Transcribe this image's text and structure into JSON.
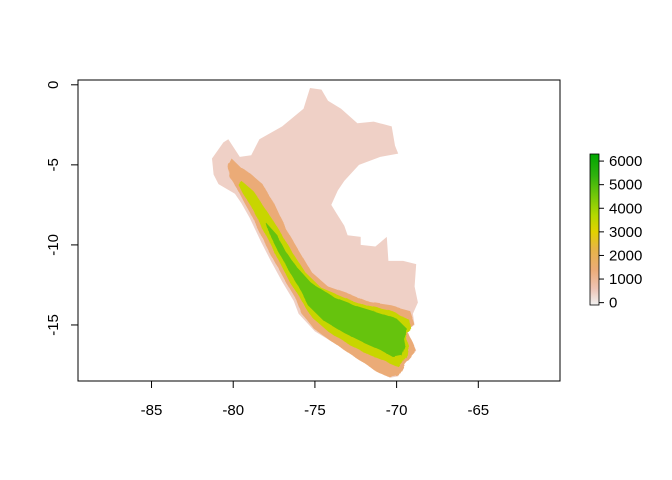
{
  "chart_data": {
    "type": "heatmap",
    "title": "",
    "xlabel": "",
    "ylabel": "",
    "xlim": [
      -89.5,
      -60
    ],
    "ylim": [
      -18.5,
      0.3
    ],
    "x_ticks": [
      -85,
      -80,
      -75,
      -70,
      -65
    ],
    "y_ticks": [
      0,
      -5,
      -10,
      -15
    ],
    "x_tick_labels": [
      "-85",
      "-80",
      "-75",
      "-70",
      "-65"
    ],
    "y_tick_labels": [
      "0",
      "-5",
      "-10",
      "-15"
    ],
    "legend": {
      "placement": "right",
      "range": [
        -100,
        6300
      ],
      "ticks": [
        0,
        1000,
        2000,
        3000,
        4000,
        5000,
        6000
      ],
      "tick_labels": [
        "0",
        "1000",
        "2000",
        "3000",
        "4000",
        "5000",
        "6000"
      ],
      "palette": [
        {
          "value": -100,
          "color": "#f2f2f2"
        },
        {
          "value": 600,
          "color": "#eec3b4"
        },
        {
          "value": 1400,
          "color": "#ebab77"
        },
        {
          "value": 2300,
          "color": "#e6b545"
        },
        {
          "value": 3000,
          "color": "#e2d100"
        },
        {
          "value": 3700,
          "color": "#b4d800"
        },
        {
          "value": 4600,
          "color": "#6ec60a"
        },
        {
          "value": 5400,
          "color": "#2fb10e"
        },
        {
          "value": 6300,
          "color": "#00a600"
        }
      ]
    },
    "regions": {
      "country_outline": [
        [
          -81.2,
          -5.6
        ],
        [
          -81.3,
          -4.6
        ],
        [
          -80.6,
          -3.6
        ],
        [
          -80.3,
          -3.4
        ],
        [
          -79.6,
          -4.5
        ],
        [
          -78.9,
          -4.4
        ],
        [
          -78.4,
          -3.4
        ],
        [
          -77.0,
          -2.6
        ],
        [
          -75.7,
          -1.5
        ],
        [
          -75.3,
          -0.2
        ],
        [
          -74.6,
          -0.3
        ],
        [
          -74.2,
          -1.0
        ],
        [
          -73.4,
          -1.5
        ],
        [
          -72.4,
          -2.4
        ],
        [
          -71.4,
          -2.3
        ],
        [
          -70.3,
          -2.6
        ],
        [
          -70.1,
          -3.8
        ],
        [
          -69.9,
          -4.3
        ],
        [
          -71.0,
          -4.5
        ],
        [
          -72.3,
          -5.0
        ],
        [
          -73.2,
          -6.0
        ],
        [
          -73.6,
          -6.6
        ],
        [
          -74.0,
          -7.5
        ],
        [
          -73.7,
          -8.0
        ],
        [
          -73.2,
          -8.8
        ],
        [
          -73.0,
          -9.4
        ],
        [
          -72.2,
          -9.5
        ],
        [
          -72.2,
          -10.0
        ],
        [
          -71.3,
          -10.1
        ],
        [
          -70.6,
          -9.5
        ],
        [
          -70.5,
          -11.0
        ],
        [
          -69.6,
          -11.0
        ],
        [
          -68.8,
          -11.2
        ],
        [
          -68.9,
          -12.6
        ],
        [
          -68.7,
          -13.6
        ],
        [
          -69.0,
          -14.3
        ],
        [
          -68.9,
          -15.0
        ],
        [
          -69.4,
          -15.3
        ],
        [
          -69.0,
          -16.1
        ],
        [
          -68.8,
          -16.6
        ],
        [
          -69.5,
          -17.4
        ],
        [
          -69.9,
          -18.2
        ],
        [
          -70.4,
          -18.3
        ],
        [
          -71.4,
          -17.8
        ],
        [
          -72.4,
          -17.0
        ],
        [
          -73.4,
          -16.4
        ],
        [
          -75.0,
          -15.4
        ],
        [
          -76.0,
          -14.3
        ],
        [
          -76.3,
          -13.5
        ],
        [
          -77.0,
          -12.3
        ],
        [
          -77.7,
          -11.0
        ],
        [
          -78.3,
          -9.8
        ],
        [
          -79.0,
          -8.3
        ],
        [
          -79.5,
          -7.4
        ],
        [
          -79.9,
          -6.8
        ],
        [
          -80.9,
          -6.2
        ],
        [
          -81.2,
          -5.6
        ]
      ],
      "andes_mid": [
        [
          -80.1,
          -4.6
        ],
        [
          -79.5,
          -5.2
        ],
        [
          -79.0,
          -5.5
        ],
        [
          -78.2,
          -6.2
        ],
        [
          -77.6,
          -7.2
        ],
        [
          -77.1,
          -8.3
        ],
        [
          -76.6,
          -9.3
        ],
        [
          -75.9,
          -10.5
        ],
        [
          -75.2,
          -11.7
        ],
        [
          -74.2,
          -12.6
        ],
        [
          -72.8,
          -13.1
        ],
        [
          -71.6,
          -13.6
        ],
        [
          -70.3,
          -13.8
        ],
        [
          -69.2,
          -14.1
        ],
        [
          -68.9,
          -15.0
        ],
        [
          -69.4,
          -15.3
        ],
        [
          -69.0,
          -16.1
        ],
        [
          -68.8,
          -16.6
        ],
        [
          -69.5,
          -17.4
        ],
        [
          -69.9,
          -18.2
        ],
        [
          -70.4,
          -18.3
        ],
        [
          -71.4,
          -17.8
        ],
        [
          -72.4,
          -17.1
        ],
        [
          -73.6,
          -16.3
        ],
        [
          -75.0,
          -15.3
        ],
        [
          -75.8,
          -14.3
        ],
        [
          -76.1,
          -13.5
        ],
        [
          -76.8,
          -12.3
        ],
        [
          -77.5,
          -11.0
        ],
        [
          -78.1,
          -9.8
        ],
        [
          -78.8,
          -8.3
        ],
        [
          -79.3,
          -7.4
        ],
        [
          -79.7,
          -6.6
        ],
        [
          -80.2,
          -5.8
        ],
        [
          -80.3,
          -5.0
        ],
        [
          -80.1,
          -4.6
        ]
      ],
      "andes_high": [
        [
          -79.5,
          -6.0
        ],
        [
          -78.8,
          -6.6
        ],
        [
          -78.2,
          -7.5
        ],
        [
          -77.6,
          -8.4
        ],
        [
          -77.0,
          -9.4
        ],
        [
          -76.3,
          -10.6
        ],
        [
          -75.6,
          -11.7
        ],
        [
          -74.6,
          -12.7
        ],
        [
          -73.2,
          -13.3
        ],
        [
          -71.8,
          -13.8
        ],
        [
          -70.4,
          -14.1
        ],
        [
          -69.3,
          -14.6
        ],
        [
          -69.1,
          -15.2
        ],
        [
          -69.4,
          -15.5
        ],
        [
          -69.3,
          -16.3
        ],
        [
          -69.4,
          -17.0
        ],
        [
          -69.9,
          -17.6
        ],
        [
          -70.6,
          -17.3
        ],
        [
          -71.6,
          -16.9
        ],
        [
          -72.8,
          -16.3
        ],
        [
          -74.2,
          -15.4
        ],
        [
          -75.2,
          -14.5
        ],
        [
          -75.8,
          -13.5
        ],
        [
          -76.5,
          -12.4
        ],
        [
          -77.1,
          -11.2
        ],
        [
          -77.7,
          -10.0
        ],
        [
          -78.3,
          -8.8
        ],
        [
          -78.9,
          -7.6
        ],
        [
          -79.4,
          -6.8
        ],
        [
          -79.7,
          -6.2
        ],
        [
          -79.5,
          -6.0
        ]
      ],
      "andes_peak": [
        [
          -78.0,
          -8.6
        ],
        [
          -77.3,
          -9.4
        ],
        [
          -76.8,
          -10.4
        ],
        [
          -76.1,
          -11.4
        ],
        [
          -75.2,
          -12.4
        ],
        [
          -73.8,
          -13.3
        ],
        [
          -72.5,
          -13.8
        ],
        [
          -71.2,
          -14.2
        ],
        [
          -70.0,
          -14.6
        ],
        [
          -69.4,
          -15.2
        ],
        [
          -69.5,
          -16.2
        ],
        [
          -69.7,
          -16.9
        ],
        [
          -70.2,
          -17.0
        ],
        [
          -70.9,
          -16.6
        ],
        [
          -72.0,
          -16.1
        ],
        [
          -73.2,
          -15.5
        ],
        [
          -74.5,
          -14.7
        ],
        [
          -75.4,
          -13.8
        ],
        [
          -76.0,
          -12.6
        ],
        [
          -76.7,
          -11.4
        ],
        [
          -77.3,
          -10.3
        ],
        [
          -77.8,
          -9.3
        ],
        [
          -78.0,
          -8.6
        ]
      ]
    }
  }
}
